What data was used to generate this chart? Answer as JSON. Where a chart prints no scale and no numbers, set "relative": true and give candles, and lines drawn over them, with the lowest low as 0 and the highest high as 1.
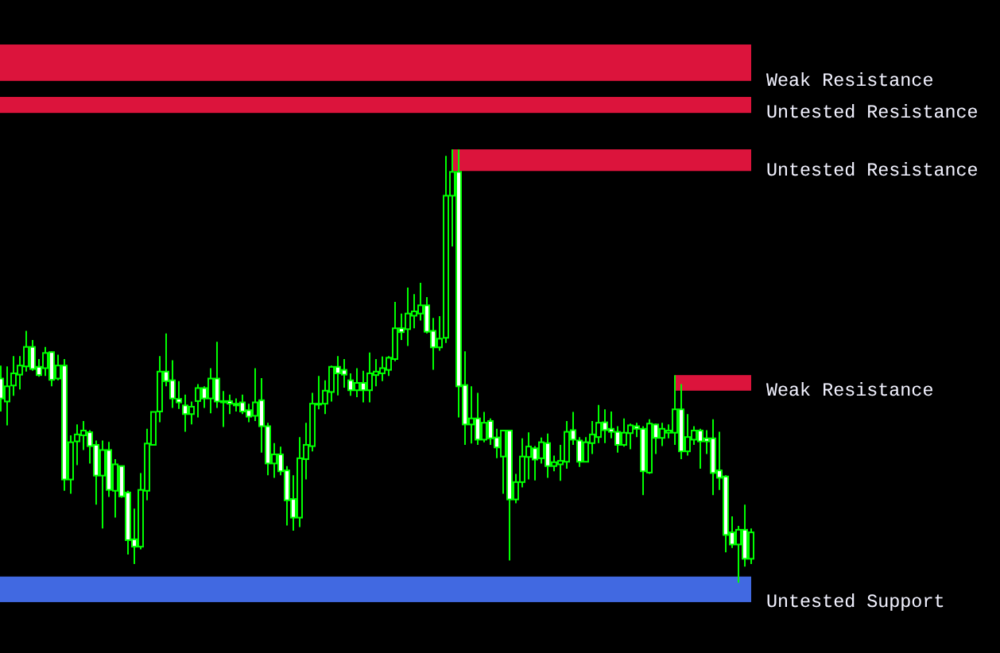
{
  "chart_data": {
    "type": "candlestick",
    "relative": true,
    "categories": [
      null,
      null,
      null,
      null,
      null,
      null,
      null,
      null,
      null,
      null,
      null,
      null,
      null,
      null,
      null,
      null,
      null,
      null,
      null,
      null,
      null,
      null,
      null,
      null,
      null,
      null,
      null,
      null,
      null,
      null,
      null,
      null,
      null,
      null,
      null,
      null,
      null,
      null,
      null,
      null,
      null,
      null,
      null,
      null,
      null,
      null,
      null,
      null,
      null,
      null,
      null,
      null,
      null,
      null,
      null,
      null,
      null,
      null,
      null,
      null,
      null,
      null,
      null,
      null,
      null,
      null,
      null,
      null,
      null,
      null,
      null,
      null,
      null,
      null,
      null,
      null,
      null,
      null,
      null,
      null,
      null,
      null,
      null,
      null,
      null,
      null,
      null,
      null,
      null,
      null,
      null,
      null,
      null,
      null,
      null,
      null,
      null,
      null,
      null,
      null,
      null,
      null,
      null,
      null,
      null,
      null,
      null,
      null,
      null,
      null,
      null,
      null,
      null,
      null,
      null,
      null,
      null,
      null,
      null
    ],
    "ohlc": [
      [
        0.471,
        0.501,
        0.395,
        0.425
      ],
      [
        0.418,
        0.499,
        0.363,
        0.453
      ],
      [
        0.455,
        0.523,
        0.431,
        0.483
      ],
      [
        0.48,
        0.523,
        0.446,
        0.501
      ],
      [
        0.499,
        0.581,
        0.487,
        0.544
      ],
      [
        0.544,
        0.56,
        0.489,
        0.493
      ],
      [
        0.498,
        0.516,
        0.475,
        0.479
      ],
      [
        0.495,
        0.544,
        0.477,
        0.53
      ],
      [
        0.532,
        0.534,
        0.453,
        0.468
      ],
      [
        0.471,
        0.526,
        0.467,
        0.501
      ],
      [
        0.501,
        0.516,
        0.212,
        0.238
      ],
      [
        0.238,
        0.34,
        0.205,
        0.324
      ],
      [
        0.326,
        0.365,
        0.271,
        0.342
      ],
      [
        0.34,
        0.373,
        0.306,
        0.351
      ],
      [
        0.347,
        0.352,
        0.275,
        0.315
      ],
      [
        0.318,
        0.328,
        0.18,
        0.247
      ],
      [
        0.247,
        0.328,
        0.125,
        0.306
      ],
      [
        0.306,
        0.325,
        0.198,
        0.214
      ],
      [
        0.212,
        0.285,
        0.15,
        0.273
      ],
      [
        0.269,
        0.269,
        0.196,
        0.199
      ],
      [
        0.208,
        0.212,
        0.065,
        0.098
      ],
      [
        0.1,
        0.171,
        0.043,
        0.083
      ],
      [
        0.083,
        0.253,
        0.077,
        0.214
      ],
      [
        0.212,
        0.355,
        0.19,
        0.321
      ],
      [
        0.318,
        0.394,
        0.318,
        0.394
      ],
      [
        0.395,
        0.523,
        0.37,
        0.487
      ],
      [
        0.487,
        0.575,
        0.453,
        0.465
      ],
      [
        0.467,
        0.513,
        0.403,
        0.425
      ],
      [
        0.424,
        0.465,
        0.401,
        0.416
      ],
      [
        0.409,
        0.434,
        0.348,
        0.389
      ],
      [
        0.389,
        0.418,
        0.365,
        0.406
      ],
      [
        0.419,
        0.458,
        0.381,
        0.449
      ],
      [
        0.449,
        0.453,
        0.403,
        0.425
      ],
      [
        0.425,
        0.495,
        0.391,
        0.471
      ],
      [
        0.471,
        0.556,
        0.403,
        0.418
      ],
      [
        0.419,
        0.442,
        0.359,
        0.416
      ],
      [
        0.419,
        0.434,
        0.389,
        0.413
      ],
      [
        0.413,
        0.425,
        0.395,
        0.409
      ],
      [
        0.416,
        0.434,
        0.389,
        0.395
      ],
      [
        0.398,
        0.413,
        0.37,
        0.383
      ],
      [
        0.385,
        0.495,
        0.373,
        0.416
      ],
      [
        0.421,
        0.472,
        0.3,
        0.361
      ],
      [
        0.361,
        0.369,
        0.248,
        0.275
      ],
      [
        0.275,
        0.322,
        0.242,
        0.296
      ],
      [
        0.296,
        0.314,
        0.248,
        0.257
      ],
      [
        0.259,
        0.269,
        0.132,
        0.19
      ],
      [
        0.193,
        0.248,
        0.12,
        0.15
      ],
      [
        0.15,
        0.336,
        0.128,
        0.287
      ],
      [
        0.285,
        0.369,
        0.238,
        0.318
      ],
      [
        0.315,
        0.438,
        0.303,
        0.413
      ],
      [
        0.413,
        0.477,
        0.4,
        0.411
      ],
      [
        0.413,
        0.467,
        0.389,
        0.443
      ],
      [
        0.44,
        0.501,
        0.418,
        0.498
      ],
      [
        0.498,
        0.523,
        0.432,
        0.483
      ],
      [
        0.491,
        0.516,
        0.45,
        0.48
      ],
      [
        0.467,
        0.483,
        0.431,
        0.444
      ],
      [
        0.444,
        0.495,
        0.428,
        0.461
      ],
      [
        0.461,
        0.489,
        0.416,
        0.444
      ],
      [
        0.444,
        0.531,
        0.416,
        0.483
      ],
      [
        0.479,
        0.516,
        0.453,
        0.487
      ],
      [
        0.483,
        0.522,
        0.465,
        0.495
      ],
      [
        0.491,
        0.523,
        0.477,
        0.519
      ],
      [
        0.516,
        0.648,
        0.511,
        0.587
      ],
      [
        0.587,
        0.621,
        0.56,
        0.578
      ],
      [
        0.585,
        0.681,
        0.546,
        0.621
      ],
      [
        0.616,
        0.666,
        0.587,
        0.626
      ],
      [
        0.621,
        0.692,
        0.605,
        0.64
      ],
      [
        0.64,
        0.659,
        0.575,
        0.579
      ],
      [
        0.581,
        0.611,
        0.491,
        0.543
      ],
      [
        0.543,
        0.615,
        0.535,
        0.563
      ],
      [
        0.565,
        0.985,
        0.553,
        0.893
      ],
      [
        0.893,
        1,
        0.776,
        0.948
      ],
      [
        0.948,
        1,
        0.381,
        0.453
      ],
      [
        0.456,
        0.534,
        0.318,
        0.365
      ],
      [
        0.365,
        0.453,
        0.321,
        0.379
      ],
      [
        0.379,
        0.438,
        0.318,
        0.33
      ],
      [
        0.33,
        0.394,
        0.324,
        0.369
      ],
      [
        0.373,
        0.379,
        0.318,
        0.333
      ],
      [
        0.335,
        0.355,
        0.287,
        0.312
      ],
      [
        0.291,
        0.351,
        0.205,
        0.351
      ],
      [
        0.351,
        0.351,
        0.051,
        0.192
      ],
      [
        0.192,
        0.251,
        0.183,
        0.232
      ],
      [
        0.232,
        0.333,
        0.22,
        0.291
      ],
      [
        0.29,
        0.347,
        0.238,
        0.314
      ],
      [
        0.31,
        0.315,
        0.236,
        0.284
      ],
      [
        0.287,
        0.335,
        0.275,
        0.324
      ],
      [
        0.322,
        0.344,
        0.242,
        0.269
      ],
      [
        0.269,
        0.293,
        0.257,
        0.278
      ],
      [
        0.273,
        0.318,
        0.235,
        0.281
      ],
      [
        0.279,
        0.373,
        0.263,
        0.348
      ],
      [
        0.352,
        0.394,
        0.318,
        0.33
      ],
      [
        0.328,
        0.336,
        0.267,
        0.279
      ],
      [
        0.279,
        0.336,
        0.278,
        0.324
      ],
      [
        0.322,
        0.373,
        0.297,
        0.342
      ],
      [
        0.336,
        0.41,
        0.322,
        0.369
      ],
      [
        0.37,
        0.4,
        0.322,
        0.352
      ],
      [
        0.355,
        0.395,
        0.333,
        0.348
      ],
      [
        0.348,
        0.361,
        0.3,
        0.318
      ],
      [
        0.318,
        0.379,
        0.314,
        0.346
      ],
      [
        0.345,
        0.367,
        0.308,
        0.363
      ],
      [
        0.361,
        0.369,
        0.336,
        0.355
      ],
      [
        0.355,
        0.361,
        0.202,
        0.257
      ],
      [
        0.254,
        0.377,
        0.251,
        0.367
      ],
      [
        0.365,
        0.367,
        0.297,
        0.334
      ],
      [
        0.334,
        0.369,
        0.315,
        0.355
      ],
      [
        0.346,
        0.365,
        0.333,
        0.351
      ],
      [
        0.346,
        0.479,
        0.318,
        0.4
      ],
      [
        0.4,
        0.458,
        0.285,
        0.303
      ],
      [
        0.303,
        0.389,
        0.293,
        0.336
      ],
      [
        0.33,
        0.361,
        0.318,
        0.351
      ],
      [
        0.351,
        0.355,
        0.263,
        0.326
      ],
      [
        0.333,
        0.352,
        0.297,
        0.326
      ],
      [
        0.333,
        0.377,
        0.202,
        0.253
      ],
      [
        0.259,
        0.348,
        0.214,
        0.242
      ],
      [
        0.245,
        0.248,
        0.07,
        0.11
      ],
      [
        0.116,
        0.153,
        0.08,
        0.088
      ],
      [
        0.088,
        0.131,
        0,
        0.122
      ],
      [
        0.122,
        0.18,
        0.037,
        0.055
      ],
      [
        0.055,
        0.125,
        0.043,
        0.116
      ]
    ],
    "bands": [
      {
        "axis": "y",
        "from": 1.158,
        "to": 1.242,
        "label": "Weak Resistance",
        "color": "#dc143c"
      },
      {
        "axis": "y",
        "from": 1.084,
        "to": 1.121,
        "label": "Untested Resistance",
        "color": "#dc143c"
      },
      {
        "axis": "y",
        "from": 0.95,
        "to": 1,
        "label": "Untested Resistance",
        "color": "#dc143c"
      },
      {
        "axis": "y",
        "from": 0.443,
        "to": 0.479,
        "label": "Weak Resistance",
        "color": "#dc143c"
      },
      {
        "axis": "y",
        "from": -0.045,
        "to": 0.014,
        "label": "Untested Support",
        "color": "#4169e1"
      }
    ]
  }
}
